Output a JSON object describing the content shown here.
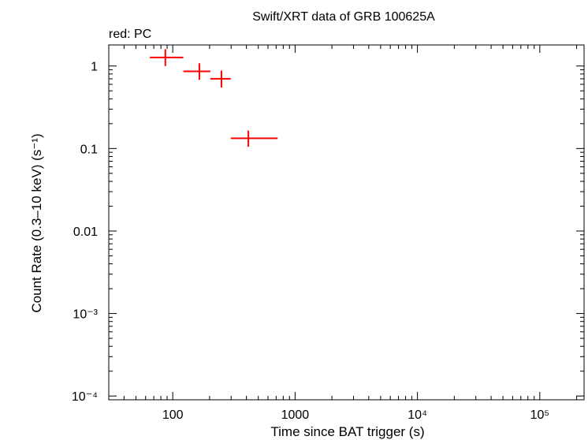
{
  "chart_data": {
    "type": "scatter",
    "title": "Swift/XRT data of GRB 100625A",
    "subtitle": "red: PC",
    "xlabel": "Time since BAT trigger (s)",
    "ylabel": "Count Rate (0.3–10 keV) (s⁻¹)",
    "xscale": "log",
    "yscale": "log",
    "xlim": [
      30,
      230000
    ],
    "ylim": [
      9e-05,
      1.8
    ],
    "x_ticks": [
      {
        "value": 100,
        "label": "100"
      },
      {
        "value": 1000,
        "label": "1000"
      },
      {
        "value": 10000,
        "label": "10⁴"
      },
      {
        "value": 100000,
        "label": "10⁵"
      }
    ],
    "y_ticks": [
      {
        "value": 1,
        "label": "1"
      },
      {
        "value": 0.1,
        "label": "0.1"
      },
      {
        "value": 0.01,
        "label": "0.01"
      },
      {
        "value": 0.001,
        "label": "10⁻³"
      },
      {
        "value": 0.0001,
        "label": "10⁻⁴"
      }
    ],
    "series": [
      {
        "name": "PC",
        "color": "#ff0000",
        "points": [
          {
            "x": 87,
            "x_lo": 65,
            "x_hi": 122,
            "y": 1.27,
            "y_lo": 1.0,
            "y_hi": 1.6
          },
          {
            "x": 165,
            "x_lo": 122,
            "x_hi": 203,
            "y": 0.86,
            "y_lo": 0.68,
            "y_hi": 1.08
          },
          {
            "x": 250,
            "x_lo": 203,
            "x_hi": 298,
            "y": 0.7,
            "y_lo": 0.55,
            "y_hi": 0.88
          },
          {
            "x": 415,
            "x_lo": 298,
            "x_hi": 720,
            "y": 0.133,
            "y_lo": 0.105,
            "y_hi": 0.165
          }
        ]
      }
    ]
  }
}
